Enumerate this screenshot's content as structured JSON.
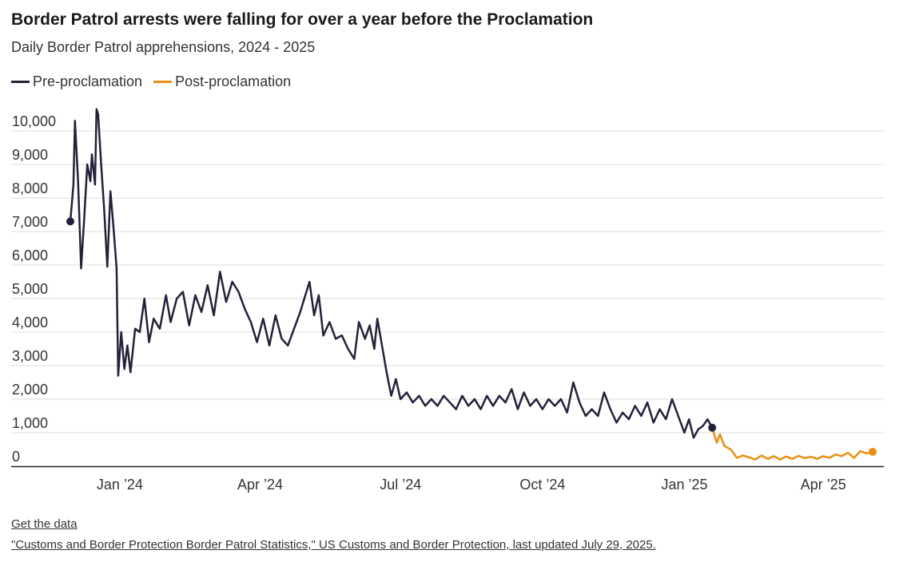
{
  "chart_data": {
    "type": "line",
    "title": "Border Patrol arrests were falling for over a year before the Proclamation",
    "subtitle": "Daily Border Patrol apprehensions, 2024 - 2025",
    "xlabel": "",
    "ylabel": "",
    "ylim": [
      0,
      10500
    ],
    "y_ticks": [
      0,
      1000,
      2000,
      3000,
      4000,
      5000,
      6000,
      7000,
      8000,
      9000,
      10000
    ],
    "y_tick_labels": [
      "0",
      "1,000",
      "2,000",
      "3,000",
      "4,000",
      "5,000",
      "6,000",
      "7,000",
      "8,000",
      "9,000",
      "10,000"
    ],
    "x_axis": {
      "start": "2023-12-01",
      "end": "2025-05-10"
    },
    "x_ticks": [
      {
        "date": "2024-01-01",
        "label": "Jan ’24"
      },
      {
        "date": "2024-04-01",
        "label": "Apr ’24"
      },
      {
        "date": "2024-07-01",
        "label": "Jul ’24"
      },
      {
        "date": "2024-10-01",
        "label": "Oct ’24"
      },
      {
        "date": "2025-01-01",
        "label": "Jan ’25"
      },
      {
        "date": "2025-04-01",
        "label": "Apr ’25"
      }
    ],
    "series": [
      {
        "name": "Pre-proclamation",
        "color": "#24213a",
        "points": [
          [
            "2023-12-01",
            7300
          ],
          [
            "2023-12-03",
            8400
          ],
          [
            "2023-12-04",
            10300
          ],
          [
            "2023-12-06",
            8500
          ],
          [
            "2023-12-08",
            5900
          ],
          [
            "2023-12-10",
            7400
          ],
          [
            "2023-12-12",
            9000
          ],
          [
            "2023-12-14",
            8500
          ],
          [
            "2023-12-15",
            9300
          ],
          [
            "2023-12-17",
            8400
          ],
          [
            "2023-12-18",
            10650
          ],
          [
            "2023-12-19",
            10500
          ],
          [
            "2023-12-21",
            9000
          ],
          [
            "2023-12-23",
            7600
          ],
          [
            "2023-12-25",
            5950
          ],
          [
            "2023-12-27",
            8200
          ],
          [
            "2023-12-29",
            7100
          ],
          [
            "2023-12-31",
            5900
          ],
          [
            "2024-01-01",
            2700
          ],
          [
            "2024-01-03",
            4000
          ],
          [
            "2024-01-05",
            2900
          ],
          [
            "2024-01-07",
            3600
          ],
          [
            "2024-01-09",
            2800
          ],
          [
            "2024-01-12",
            4100
          ],
          [
            "2024-01-15",
            4000
          ],
          [
            "2024-01-18",
            5000
          ],
          [
            "2024-01-21",
            3700
          ],
          [
            "2024-01-24",
            4400
          ],
          [
            "2024-01-28",
            4100
          ],
          [
            "2024-02-01",
            5100
          ],
          [
            "2024-02-04",
            4300
          ],
          [
            "2024-02-08",
            5000
          ],
          [
            "2024-02-12",
            5200
          ],
          [
            "2024-02-16",
            4200
          ],
          [
            "2024-02-20",
            5100
          ],
          [
            "2024-02-24",
            4600
          ],
          [
            "2024-02-28",
            5400
          ],
          [
            "2024-03-03",
            4500
          ],
          [
            "2024-03-07",
            5800
          ],
          [
            "2024-03-11",
            4900
          ],
          [
            "2024-03-15",
            5500
          ],
          [
            "2024-03-19",
            5200
          ],
          [
            "2024-03-23",
            4700
          ],
          [
            "2024-03-27",
            4300
          ],
          [
            "2024-03-31",
            3700
          ],
          [
            "2024-04-04",
            4400
          ],
          [
            "2024-04-08",
            3600
          ],
          [
            "2024-04-12",
            4500
          ],
          [
            "2024-04-16",
            3800
          ],
          [
            "2024-04-20",
            3600
          ],
          [
            "2024-04-24",
            4100
          ],
          [
            "2024-04-28",
            4600
          ],
          [
            "2024-05-02",
            5200
          ],
          [
            "2024-05-04",
            5500
          ],
          [
            "2024-05-07",
            4500
          ],
          [
            "2024-05-10",
            5100
          ],
          [
            "2024-05-13",
            3900
          ],
          [
            "2024-05-17",
            4300
          ],
          [
            "2024-05-21",
            3800
          ],
          [
            "2024-05-25",
            3900
          ],
          [
            "2024-05-29",
            3500
          ],
          [
            "2024-06-02",
            3200
          ],
          [
            "2024-06-05",
            4300
          ],
          [
            "2024-06-09",
            3800
          ],
          [
            "2024-06-12",
            4200
          ],
          [
            "2024-06-15",
            3500
          ],
          [
            "2024-06-17",
            4400
          ],
          [
            "2024-06-20",
            3600
          ],
          [
            "2024-06-23",
            2800
          ],
          [
            "2024-06-26",
            2100
          ],
          [
            "2024-06-29",
            2600
          ],
          [
            "2024-07-02",
            2000
          ],
          [
            "2024-07-06",
            2200
          ],
          [
            "2024-07-10",
            1900
          ],
          [
            "2024-07-14",
            2100
          ],
          [
            "2024-07-18",
            1800
          ],
          [
            "2024-07-22",
            2000
          ],
          [
            "2024-07-26",
            1800
          ],
          [
            "2024-07-30",
            2100
          ],
          [
            "2024-08-03",
            1900
          ],
          [
            "2024-08-07",
            1700
          ],
          [
            "2024-08-11",
            2100
          ],
          [
            "2024-08-15",
            1800
          ],
          [
            "2024-08-19",
            2000
          ],
          [
            "2024-08-23",
            1700
          ],
          [
            "2024-08-27",
            2100
          ],
          [
            "2024-08-31",
            1800
          ],
          [
            "2024-09-04",
            2100
          ],
          [
            "2024-09-08",
            1900
          ],
          [
            "2024-09-12",
            2300
          ],
          [
            "2024-09-16",
            1700
          ],
          [
            "2024-09-20",
            2200
          ],
          [
            "2024-09-24",
            1800
          ],
          [
            "2024-09-28",
            2000
          ],
          [
            "2024-10-02",
            1700
          ],
          [
            "2024-10-06",
            2000
          ],
          [
            "2024-10-10",
            1800
          ],
          [
            "2024-10-14",
            2000
          ],
          [
            "2024-10-18",
            1600
          ],
          [
            "2024-10-22",
            2500
          ],
          [
            "2024-10-26",
            1900
          ],
          [
            "2024-10-30",
            1500
          ],
          [
            "2024-11-03",
            1700
          ],
          [
            "2024-11-07",
            1500
          ],
          [
            "2024-11-11",
            2200
          ],
          [
            "2024-11-15",
            1700
          ],
          [
            "2024-11-19",
            1300
          ],
          [
            "2024-11-23",
            1600
          ],
          [
            "2024-11-27",
            1400
          ],
          [
            "2024-12-01",
            1800
          ],
          [
            "2024-12-05",
            1500
          ],
          [
            "2024-12-09",
            1900
          ],
          [
            "2024-12-13",
            1300
          ],
          [
            "2024-12-17",
            1700
          ],
          [
            "2024-12-21",
            1400
          ],
          [
            "2024-12-25",
            2000
          ],
          [
            "2024-12-29",
            1500
          ],
          [
            "2025-01-02",
            1000
          ],
          [
            "2025-01-05",
            1400
          ],
          [
            "2025-01-08",
            850
          ],
          [
            "2025-01-11",
            1100
          ],
          [
            "2025-01-14",
            1200
          ],
          [
            "2025-01-17",
            1400
          ],
          [
            "2025-01-20",
            1150
          ]
        ]
      },
      {
        "name": "Post-proclamation",
        "color": "#ea8f13",
        "points": [
          [
            "2025-01-20",
            1150
          ],
          [
            "2025-01-23",
            700
          ],
          [
            "2025-01-25",
            950
          ],
          [
            "2025-01-28",
            600
          ],
          [
            "2025-02-01",
            500
          ],
          [
            "2025-02-05",
            250
          ],
          [
            "2025-02-09",
            320
          ],
          [
            "2025-02-13",
            260
          ],
          [
            "2025-02-17",
            200
          ],
          [
            "2025-02-21",
            320
          ],
          [
            "2025-02-25",
            220
          ],
          [
            "2025-03-01",
            300
          ],
          [
            "2025-03-05",
            200
          ],
          [
            "2025-03-09",
            290
          ],
          [
            "2025-03-13",
            220
          ],
          [
            "2025-03-17",
            310
          ],
          [
            "2025-03-21",
            240
          ],
          [
            "2025-03-25",
            280
          ],
          [
            "2025-03-29",
            220
          ],
          [
            "2025-04-02",
            300
          ],
          [
            "2025-04-06",
            250
          ],
          [
            "2025-04-10",
            350
          ],
          [
            "2025-04-14",
            300
          ],
          [
            "2025-04-18",
            400
          ],
          [
            "2025-04-22",
            250
          ],
          [
            "2025-04-26",
            450
          ],
          [
            "2025-04-30",
            380
          ],
          [
            "2025-05-04",
            430
          ]
        ]
      }
    ],
    "markers": [
      {
        "date": "2023-12-01",
        "value": 7300,
        "color": "#24213a"
      },
      {
        "date": "2025-01-20",
        "value": 1150,
        "color": "#24213a"
      },
      {
        "date": "2025-05-04",
        "value": 430,
        "color": "#ea8f13"
      }
    ]
  },
  "legend": {
    "pre_label": "Pre-proclamation",
    "post_label": "Post-proclamation",
    "pre_color": "#24213a",
    "post_color": "#ea8f13"
  },
  "footer": {
    "get_data": "Get the data",
    "source": "\"Customs and Border Protection Border Patrol Statistics,\" US Customs and Border Protection, last updated July 29, 2025."
  }
}
